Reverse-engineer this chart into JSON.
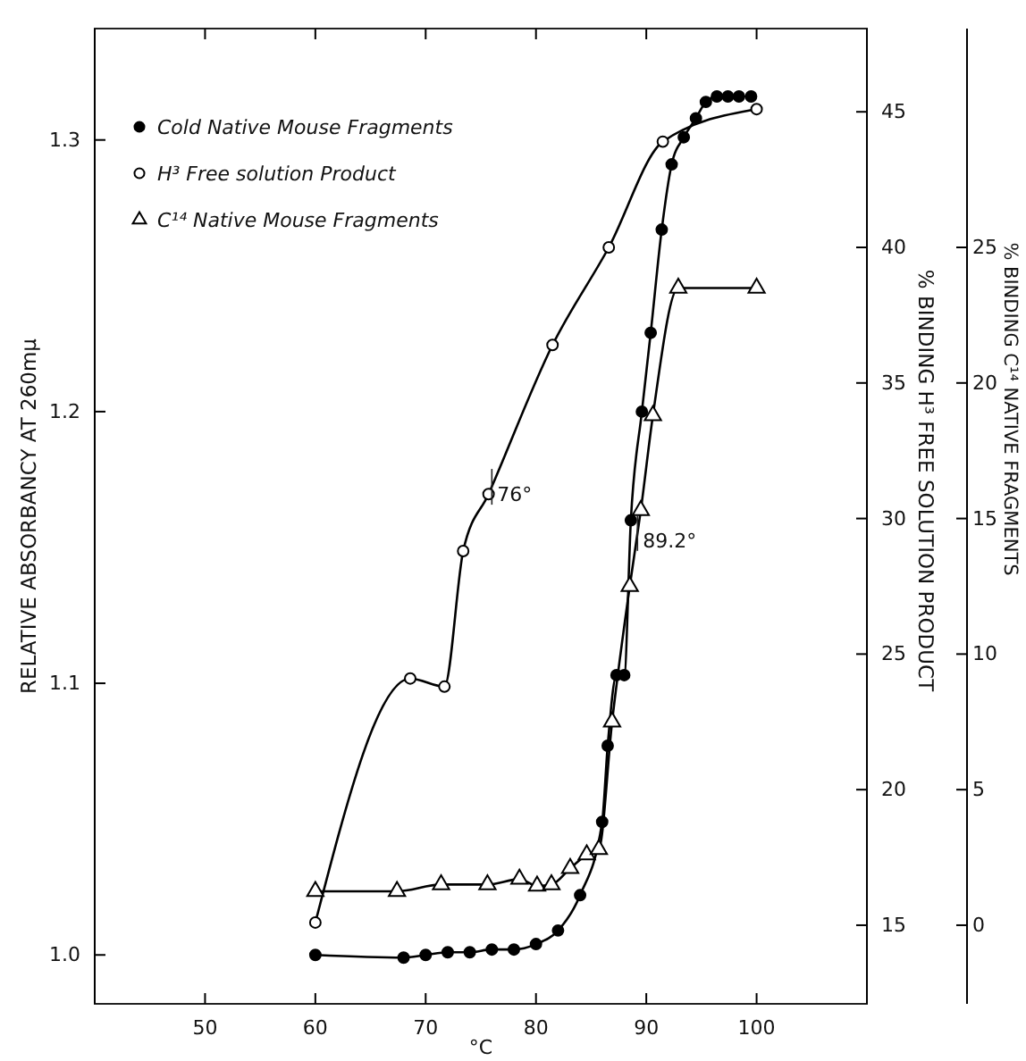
{
  "chart_data": {
    "type": "line",
    "xlabel": "°C",
    "ylabel": "RELATIVE ABSORBANCY AT 260mμ",
    "y2label": "% BINDING H³ FREE SOLUTION PRODUCT",
    "y3label": "% BINDING C¹⁴ NATIVE FRAGMENTS",
    "xlim": [
      40,
      110
    ],
    "xticks": [
      50,
      60,
      70,
      80,
      90,
      100
    ],
    "ylim": [
      0.982,
      1.341
    ],
    "yticks": [
      {
        "value": 1.0,
        "label": "1.0"
      },
      {
        "value": 1.1,
        "label": "1.1"
      },
      {
        "value": 1.2,
        "label": "1.2"
      },
      {
        "value": 1.3,
        "label": "1.3"
      }
    ],
    "y2lim": [
      12.1,
      48.07
    ],
    "y2ticks": [
      15,
      20,
      25,
      30,
      35,
      40,
      45
    ],
    "y3lim": [
      -2.9,
      33.07
    ],
    "y3ticks": [
      0,
      5,
      10,
      15,
      20,
      25
    ],
    "legend": "top left",
    "line_style": "solid",
    "series": [
      {
        "name": "Cold Native Mouse Fragments",
        "color": "#000000",
        "marker": "circle",
        "axis": "y",
        "x": [
          60,
          68,
          70,
          72,
          74,
          76,
          78,
          80,
          82,
          84,
          86,
          86.5,
          87.3,
          88,
          88.6,
          89.6,
          90.4,
          91.4,
          92.3,
          93.4,
          94.5,
          95.4,
          96.4,
          97.4,
          98.4,
          99.5
        ],
        "values": [
          1.0,
          0.999,
          1.0,
          1.001,
          1.001,
          1.002,
          1.002,
          1.004,
          1.009,
          1.022,
          1.049,
          1.077,
          1.103,
          1.103,
          1.16,
          1.2,
          1.229,
          1.267,
          1.291,
          1.301,
          1.308,
          1.314,
          1.316,
          1.316,
          1.316,
          1.316
        ]
      },
      {
        "name": "H³ Free solution Product",
        "color": "#000000",
        "marker": "circle",
        "axis": "y2",
        "x": [
          60,
          68.6,
          71.7,
          73.4,
          75.7,
          81.5,
          86.6,
          91.5,
          100
        ],
        "values": [
          15.1,
          24.1,
          23.8,
          28.8,
          30.9,
          36.4,
          40.0,
          43.9,
          45.1
        ]
      },
      {
        "name": "C¹⁴ Native Mouse Fragments",
        "color": "#000000",
        "marker": "triangle",
        "axis": "y3",
        "x": [
          60,
          67.4,
          71.4,
          75.6,
          78.5,
          80.1,
          81.4,
          83.1,
          84.6,
          85.7,
          86.9,
          88.5,
          89.5,
          90.6,
          92.9,
          100
        ],
        "values": [
          1.25,
          1.25,
          1.5,
          1.5,
          1.7,
          1.45,
          1.5,
          2.1,
          2.6,
          2.8,
          7.5,
          12.5,
          15.3,
          18.8,
          23.5,
          23.5
        ]
      }
    ],
    "annotations": [
      {
        "text": "76°",
        "x": 76,
        "y": 1.171
      },
      {
        "text": "89.2°",
        "x": 89.2,
        "y": 1.154
      }
    ]
  }
}
